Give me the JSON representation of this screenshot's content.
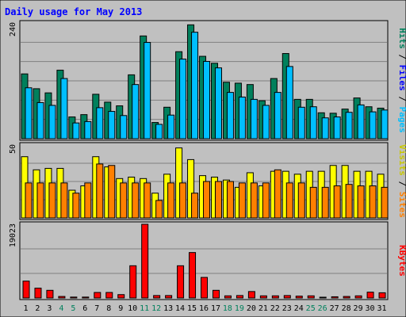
{
  "chart_data": {
    "type": "bar",
    "title": "Daily usage for May 2013",
    "days": [
      "1",
      "2",
      "3",
      "4",
      "5",
      "6",
      "7",
      "8",
      "9",
      "10",
      "11",
      "12",
      "13",
      "14",
      "15",
      "16",
      "17",
      "18",
      "19",
      "20",
      "21",
      "22",
      "23",
      "24",
      "25",
      "26",
      "27",
      "28",
      "29",
      "30",
      "31"
    ],
    "weekend_days": [
      "4",
      "5",
      "11",
      "12",
      "18",
      "19",
      "25",
      "26"
    ],
    "panels": [
      {
        "name": "pages-files-hits",
        "ymax_label": "240",
        "ymax": 250,
        "series": [
          {
            "name": "Hits",
            "color": "#00805c",
            "values": [
              140,
              108,
              99,
              148,
              47,
              52,
              96,
              79,
              71,
              138,
              222,
              35,
              68,
              188,
              246,
              178,
              163,
              122,
              120,
              117,
              82,
              130,
              184,
              85,
              85,
              56,
              55,
              64,
              88,
              69,
              66
            ]
          },
          {
            "name": "Files",
            "color": "#0000ff",
            "values": [
              110,
              78,
              72,
              130,
              34,
              37,
              67,
              59,
              50,
              117,
              208,
              33,
              51,
              172,
              230,
              167,
              153,
              100,
              90,
              85,
              72,
              100,
              156,
              68,
              69,
              45,
              47,
              57,
              73,
              58,
              62
            ]
          },
          {
            "name": "Pages",
            "color": "#00bfff",
            "values": [
              110,
              78,
              72,
              130,
              34,
              37,
              67,
              59,
              50,
              117,
              208,
              31,
              51,
              172,
              230,
              167,
              153,
              100,
              90,
              85,
              72,
              100,
              156,
              68,
              69,
              45,
              47,
              57,
              73,
              58,
              62
            ]
          }
        ],
        "render": [
          {
            "series": "Hits",
            "offset": 0
          },
          {
            "series": "Pages",
            "offset": 5
          }
        ]
      },
      {
        "name": "sites-visits",
        "ymax_label": "50",
        "ymax": 50,
        "series": [
          {
            "name": "Visits",
            "color": "#ffff00",
            "values": [
              42,
              33,
              34,
              34,
              19,
              22,
              42,
              35,
              27,
              28,
              27,
              17,
              30,
              48,
              40,
              29,
              28,
              26,
              21,
              31,
              22,
              32,
              32,
              30,
              32,
              32,
              36,
              36,
              32,
              32,
              30
            ]
          },
          {
            "name": "Sites",
            "color": "#ff8000",
            "values": [
              24,
              24,
              24,
              24,
              17,
              24,
              37,
              36,
              24,
              24,
              24,
              12,
              24,
              24,
              17,
              25,
              25,
              25,
              24,
              24,
              24,
              33,
              24,
              24,
              21,
              21,
              22,
              23,
              22,
              22,
              21
            ]
          }
        ],
        "render": [
          {
            "series": "Visits",
            "offset": 0
          },
          {
            "series": "Sites",
            "offset": 5
          }
        ]
      },
      {
        "name": "kbytes",
        "ymax_label": "19023",
        "ymax": 24000,
        "series": [
          {
            "name": "KBytes",
            "color": "#ff0000",
            "values": [
              5500,
              3200,
              2500,
              500,
              300,
              300,
              1800,
              1800,
              1100,
              10500,
              24000,
              800,
              800,
              10500,
              14800,
              6700,
              2500,
              700,
              800,
              2100,
              700,
              700,
              800,
              600,
              700,
              200,
              400,
              500,
              700,
              1900,
              1700
            ]
          }
        ],
        "render": [
          {
            "series": "KBytes",
            "offset": 2
          }
        ]
      }
    ],
    "right_labels": [
      [
        {
          "text": "Hits",
          "color": "#00805c"
        },
        {
          "text": " / ",
          "color": "#000000"
        },
        {
          "text": "Files",
          "color": "#0000ff"
        },
        {
          "text": " / ",
          "color": "#000000"
        },
        {
          "text": "Pages",
          "color": "#00bfff"
        }
      ],
      [
        {
          "text": "Visits",
          "color": "#c8c800"
        },
        {
          "text": " / ",
          "color": "#000000"
        },
        {
          "text": "Sites",
          "color": "#ff8000"
        }
      ],
      [
        {
          "text": "KBytes",
          "color": "#ff0000"
        }
      ]
    ],
    "colors": {
      "background": "#c0c0c0",
      "panel": "#c0c0c0",
      "title": "#0000ff",
      "weekday": "#000000",
      "weekend": "#00805c",
      "gridline": "#808080"
    }
  }
}
